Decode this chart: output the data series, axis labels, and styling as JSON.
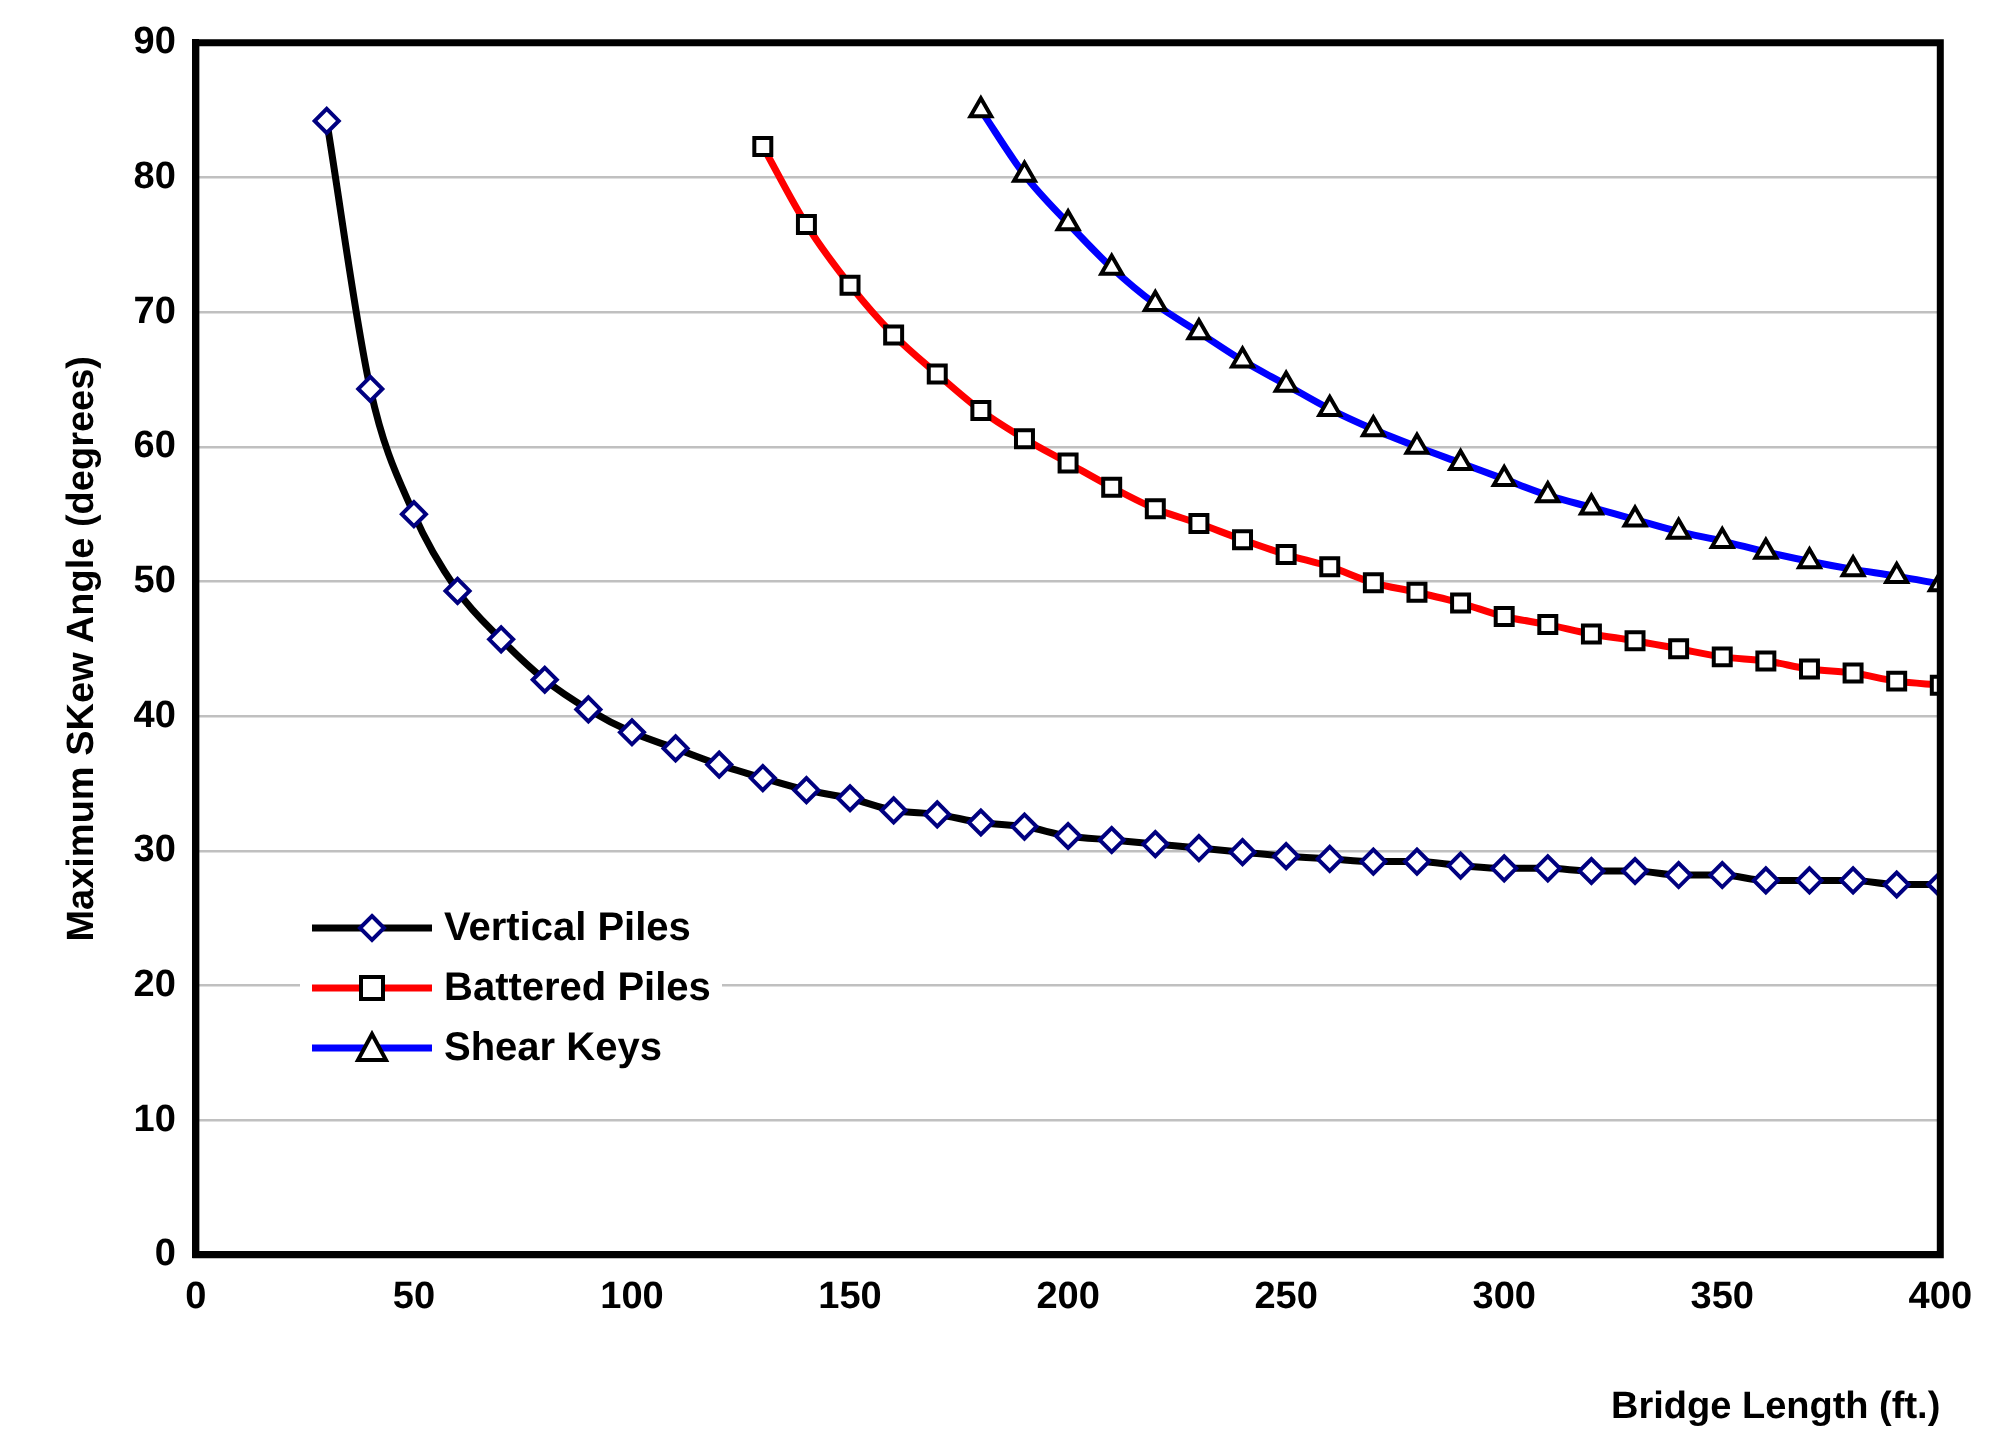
{
  "chart_data": {
    "type": "line",
    "xlabel": "Bridge Length (ft.)",
    "ylabel": "Maximum SKew Angle (degrees)",
    "xlim": [
      0,
      400
    ],
    "xticks": [
      0,
      50,
      100,
      150,
      200,
      250,
      300,
      350,
      400
    ],
    "ylim": [
      0,
      90
    ],
    "yticks": [
      0,
      10,
      20,
      30,
      40,
      50,
      60,
      70,
      80,
      90
    ],
    "grid": "y",
    "legend": "bottom left",
    "line_style": "solid",
    "series": [
      {
        "name": "Vertical Piles",
        "color": "#000000",
        "marker": "diamond",
        "x": [
          30,
          40,
          50,
          60,
          70,
          80,
          90,
          100,
          110,
          120,
          130,
          140,
          150,
          160,
          170,
          180,
          190,
          200,
          210,
          220,
          230,
          240,
          250,
          260,
          270,
          280,
          290,
          300,
          310,
          320,
          330,
          340,
          350,
          360,
          370,
          380,
          390,
          400
        ],
        "values": [
          84.2,
          64.3,
          55.0,
          49.3,
          45.7,
          42.7,
          40.5,
          38.8,
          37.6,
          36.4,
          35.4,
          34.5,
          33.9,
          33.0,
          32.7,
          32.1,
          31.8,
          31.1,
          30.8,
          30.5,
          30.2,
          29.9,
          29.6,
          29.4,
          29.2,
          29.2,
          28.9,
          28.7,
          28.7,
          28.5,
          28.5,
          28.2,
          28.2,
          27.8,
          27.8,
          27.8,
          27.5,
          27.5
        ]
      },
      {
        "name": "Battered Piles",
        "color": "#ff0000",
        "marker": "square",
        "x": [
          130,
          140,
          150,
          160,
          170,
          180,
          190,
          200,
          210,
          220,
          230,
          240,
          250,
          260,
          270,
          280,
          290,
          300,
          310,
          320,
          330,
          340,
          350,
          360,
          370,
          380,
          390,
          400
        ],
        "values": [
          82.3,
          76.5,
          72.0,
          68.3,
          65.4,
          62.7,
          60.6,
          58.8,
          57.0,
          55.4,
          54.3,
          53.1,
          52.0,
          51.1,
          49.9,
          49.2,
          48.4,
          47.4,
          46.8,
          46.1,
          45.6,
          45.0,
          44.4,
          44.1,
          43.5,
          43.2,
          42.6,
          42.3
        ]
      },
      {
        "name": "Shear Keys",
        "color": "#0000ff",
        "marker": "triangle",
        "x": [
          180,
          190,
          200,
          210,
          220,
          230,
          240,
          250,
          260,
          270,
          280,
          290,
          300,
          310,
          320,
          330,
          340,
          350,
          360,
          370,
          380,
          390,
          400
        ],
        "values": [
          85.0,
          80.2,
          76.6,
          73.3,
          70.6,
          68.5,
          66.4,
          64.6,
          62.8,
          61.3,
          60.0,
          58.8,
          57.6,
          56.4,
          55.5,
          54.6,
          53.7,
          53.0,
          52.2,
          51.5,
          50.9,
          50.4,
          49.8
        ]
      }
    ]
  }
}
